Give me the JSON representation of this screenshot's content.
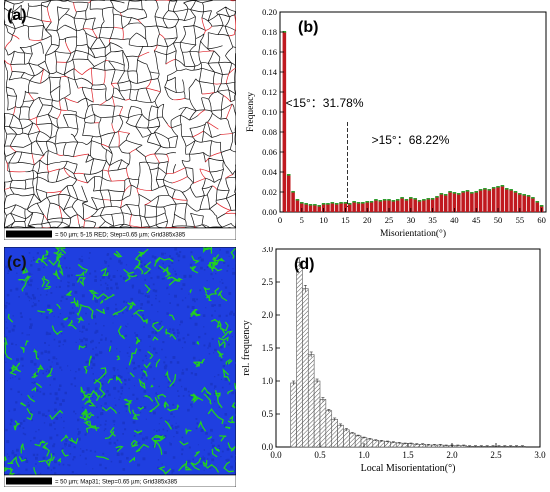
{
  "panel_a": {
    "letter": "(a)",
    "scale_text": "= 50 µm; 5-15 RED; Step=0.65 µm; Grid385x385",
    "colors": {
      "boundary": "#111111",
      "low_angle": "#e0232a",
      "background": "#ffffff"
    }
  },
  "panel_c": {
    "letter": "(c)",
    "scale_text": "= 50 µm; Map31; Step=0.65 µm; Grid385x385",
    "colors": {
      "background": "#1f3fe0",
      "highlight": "#22d11f"
    }
  },
  "chart_data": [
    {
      "panel": "(b)",
      "type": "bar",
      "xlabel": "Misorientation(°)",
      "ylabel": "Frequency",
      "xlim": [
        0,
        61
      ],
      "ylim": [
        0,
        0.2
      ],
      "xticks": [
        "0",
        "5",
        "10",
        "15",
        "20",
        "25",
        "30",
        "35",
        "40",
        "45",
        "50",
        "55",
        "60"
      ],
      "yticks": [
        "0.00",
        "0.02",
        "0.04",
        "0.06",
        "0.08",
        "0.10",
        "0.12",
        "0.14",
        "0.16",
        "0.18",
        "0.20"
      ],
      "bar_color": "#c0191f",
      "bar_cap_color": "#2e9e2e",
      "divider_x": 15.5,
      "annotations": [
        "<15°：31.78%",
        ">15°：68.22%"
      ],
      "x": [
        1,
        2,
        3,
        4,
        5,
        6,
        7,
        8,
        9,
        10,
        11,
        12,
        13,
        14,
        15,
        16,
        17,
        18,
        19,
        20,
        21,
        22,
        23,
        24,
        25,
        26,
        27,
        28,
        29,
        30,
        31,
        32,
        33,
        34,
        35,
        36,
        37,
        38,
        39,
        40,
        41,
        42,
        43,
        44,
        45,
        46,
        47,
        48,
        49,
        50,
        51,
        52,
        53,
        54,
        55,
        56,
        57,
        58,
        59,
        60
      ],
      "values": [
        0.18,
        0.037,
        0.02,
        0.012,
        0.009,
        0.008,
        0.007,
        0.007,
        0.006,
        0.008,
        0.008,
        0.009,
        0.008,
        0.009,
        0.009,
        0.008,
        0.01,
        0.009,
        0.009,
        0.01,
        0.01,
        0.012,
        0.011,
        0.012,
        0.012,
        0.011,
        0.012,
        0.014,
        0.012,
        0.014,
        0.013,
        0.011,
        0.012,
        0.013,
        0.013,
        0.015,
        0.018,
        0.017,
        0.02,
        0.019,
        0.018,
        0.02,
        0.021,
        0.019,
        0.02,
        0.022,
        0.023,
        0.022,
        0.024,
        0.025,
        0.026,
        0.023,
        0.022,
        0.02,
        0.018,
        0.017,
        0.016,
        0.014,
        0.01,
        0.006
      ]
    },
    {
      "panel": "(d)",
      "type": "bar",
      "xlabel": "Local Misorientation(°)",
      "ylabel": "rel. frequency",
      "xlim": [
        0,
        3.0
      ],
      "ylim": [
        0,
        3.0
      ],
      "xticks": [
        "0.0",
        "0.5",
        "1.0",
        "1.5",
        "2.0",
        "2.5",
        "3.0"
      ],
      "yticks": [
        "0.0",
        "0.5",
        "1.0",
        "1.5",
        "2.0",
        "2.5",
        "3.0"
      ],
      "bar_width": 0.0667,
      "x": [
        0.2,
        0.2667,
        0.3333,
        0.4,
        0.4667,
        0.5333,
        0.6,
        0.6667,
        0.7333,
        0.8,
        0.8667,
        0.9333,
        1.0,
        1.0667,
        1.1333,
        1.2,
        1.2667,
        1.3333,
        1.4,
        1.4667,
        1.5333,
        1.6,
        1.6667,
        1.7333,
        1.8,
        1.8667,
        1.9333,
        2.0,
        2.0667,
        2.1333,
        2.2,
        2.2667,
        2.3333,
        2.4,
        2.4667,
        2.5333,
        2.6,
        2.6667,
        2.7333,
        2.8
      ],
      "values": [
        0.97,
        2.8,
        2.4,
        1.4,
        1.0,
        0.72,
        0.55,
        0.42,
        0.33,
        0.26,
        0.21,
        0.17,
        0.14,
        0.12,
        0.1,
        0.09,
        0.08,
        0.07,
        0.06,
        0.05,
        0.05,
        0.04,
        0.04,
        0.03,
        0.03,
        0.03,
        0.02,
        0.02,
        0.02,
        0.02,
        0.01,
        0.01,
        0.01,
        0.01,
        0.01,
        0.01,
        0.01,
        0.01,
        0.01,
        0.01
      ],
      "errors": [
        0.03,
        0.07,
        0.05,
        0.04,
        0.03,
        0.03,
        0.02,
        0.02,
        0.02,
        0.02,
        0.01,
        0.01,
        0.01,
        0.01,
        0.01,
        0.01,
        0.01,
        0.01,
        0.01,
        0.01,
        0.01,
        0.01,
        0.01,
        0.01,
        0.01,
        0.01,
        0.01,
        0.01,
        0.01,
        0.01,
        0.01,
        0.01,
        0.01,
        0.01,
        0.01,
        0.01,
        0.01,
        0.01,
        0.01,
        0.01
      ]
    }
  ]
}
